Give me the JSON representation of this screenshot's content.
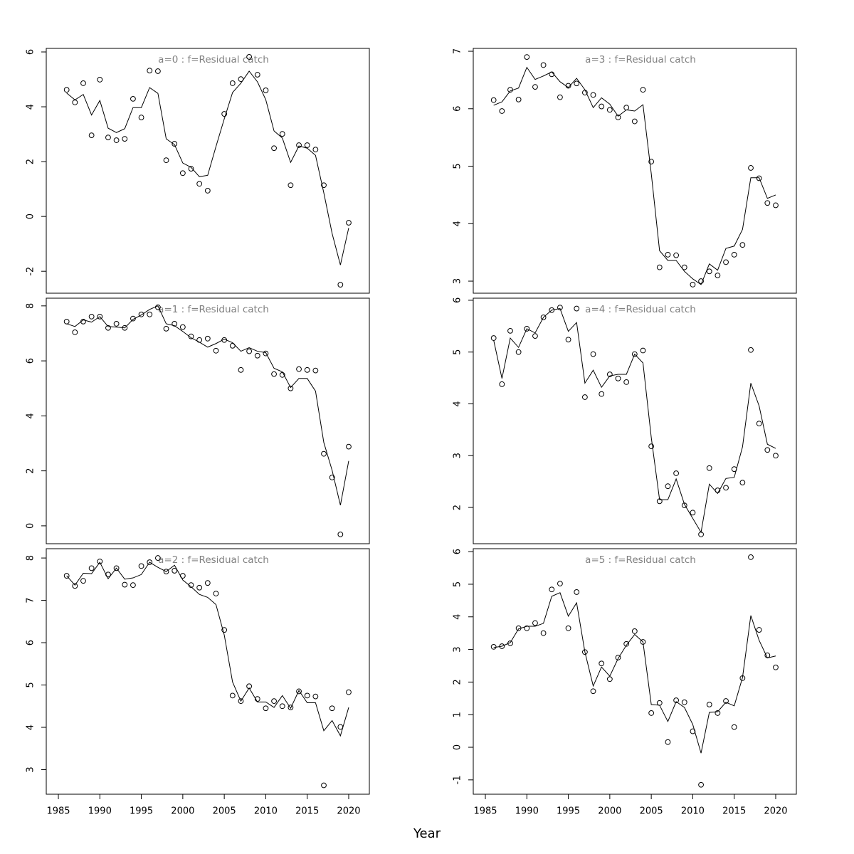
{
  "xlabel": "Year",
  "chart_data": [
    {
      "type": "line",
      "title": "a=0  :  f=Residual catch",
      "x": [
        1986,
        1987,
        1988,
        1989,
        1990,
        1991,
        1992,
        1993,
        1994,
        1995,
        1996,
        1997,
        1998,
        1999,
        2000,
        2001,
        2002,
        2003,
        2004,
        2005,
        2006,
        2007,
        2008,
        2009,
        2010,
        2011,
        2012,
        2013,
        2014,
        2015,
        2016,
        2017,
        2018,
        2019,
        2020
      ],
      "xlim": [
        1983.54,
        2022.49
      ],
      "ylim": [
        -2.8,
        6.13
      ],
      "yticks": [
        -2,
        0,
        2,
        4,
        6
      ],
      "series": [
        {
          "mode": "markers",
          "color": "#000000",
          "values": [
            4.62,
            4.16,
            4.86,
            2.96,
            4.99,
            2.88,
            2.78,
            2.83,
            4.29,
            3.61,
            5.32,
            5.3,
            2.05,
            2.65,
            1.58,
            1.74,
            1.19,
            0.94,
            null,
            3.74,
            4.86,
            5.01,
            5.82,
            5.17,
            4.6,
            2.49,
            3.01,
            1.14,
            2.6,
            2.6,
            2.44,
            1.14,
            null,
            -2.49,
            -0.23
          ]
        },
        {
          "mode": "lines",
          "color": "#000000",
          "values": [
            4.5,
            4.25,
            4.45,
            3.7,
            4.23,
            3.22,
            3.06,
            3.2,
            3.97,
            3.97,
            4.7,
            4.49,
            2.83,
            2.62,
            1.95,
            1.79,
            1.45,
            1.5,
            2.55,
            3.56,
            4.52,
            4.86,
            5.3,
            4.91,
            4.26,
            3.12,
            2.86,
            1.97,
            2.57,
            2.49,
            2.23,
            0.86,
            -0.62,
            -1.77,
            -0.42
          ]
        }
      ]
    },
    {
      "type": "line",
      "title": "a=1  :  f=Residual catch",
      "x": [
        1986,
        1987,
        1988,
        1989,
        1990,
        1991,
        1992,
        1993,
        1994,
        1995,
        1996,
        1997,
        1998,
        1999,
        2000,
        2001,
        2002,
        2003,
        2004,
        2005,
        2006,
        2007,
        2008,
        2009,
        2010,
        2011,
        2012,
        2013,
        2014,
        2015,
        2016,
        2017,
        2018,
        2019,
        2020
      ],
      "xlim": [
        1983.54,
        2022.49
      ],
      "ylim": [
        -0.65,
        8.28
      ],
      "yticks": [
        0,
        2,
        4,
        6,
        8
      ],
      "series": [
        {
          "mode": "markers",
          "color": "#000000",
          "values": [
            7.43,
            7.04,
            7.43,
            7.61,
            7.61,
            7.2,
            7.35,
            7.2,
            7.54,
            7.69,
            7.69,
            7.95,
            7.17,
            7.35,
            7.23,
            6.89,
            6.76,
            6.81,
            6.37,
            6.76,
            6.55,
            5.67,
            6.35,
            6.19,
            6.27,
            5.52,
            5.49,
            5.0,
            5.7,
            5.67,
            5.65,
            2.62,
            1.76,
            -0.31,
            2.88
          ]
        },
        {
          "mode": "lines",
          "color": "#000000",
          "values": [
            7.35,
            7.25,
            7.49,
            7.41,
            7.61,
            7.25,
            7.23,
            7.2,
            7.51,
            7.67,
            7.87,
            8.0,
            7.35,
            7.28,
            7.07,
            6.84,
            6.68,
            6.5,
            6.63,
            6.79,
            6.66,
            6.35,
            6.48,
            6.35,
            6.3,
            5.73,
            5.6,
            5.03,
            5.36,
            5.36,
            4.9,
            3.03,
            2.02,
            0.75,
            2.36
          ]
        }
      ]
    },
    {
      "type": "line",
      "title": "a=2  :  f=Residual catch",
      "x": [
        1986,
        1987,
        1988,
        1989,
        1990,
        1991,
        1992,
        1993,
        1994,
        1995,
        1996,
        1997,
        1998,
        1999,
        2000,
        2001,
        2002,
        2003,
        2004,
        2005,
        2006,
        2007,
        2008,
        2009,
        2010,
        2011,
        2012,
        2013,
        2014,
        2015,
        2016,
        2017,
        2018,
        2019,
        2020
      ],
      "xlim": [
        1983.54,
        2022.49
      ],
      "ylim": [
        2.42,
        8.22
      ],
      "yticks": [
        3,
        4,
        5,
        6,
        7,
        8
      ],
      "xticks": [
        1985,
        1990,
        1995,
        2000,
        2005,
        2010,
        2015,
        2020
      ],
      "series": [
        {
          "mode": "markers",
          "color": "#000000",
          "values": [
            7.58,
            7.34,
            7.46,
            7.76,
            7.92,
            7.61,
            7.76,
            7.37,
            7.36,
            7.81,
            7.9,
            8.0,
            7.68,
            7.7,
            7.58,
            7.36,
            7.3,
            7.41,
            7.16,
            6.3,
            4.75,
            4.62,
            4.97,
            4.67,
            4.45,
            4.62,
            4.5,
            4.47,
            4.85,
            4.75,
            4.73,
            2.63,
            4.45,
            4.01,
            4.83
          ]
        },
        {
          "mode": "lines",
          "color": "#000000",
          "values": [
            7.58,
            7.36,
            7.64,
            7.63,
            7.9,
            7.51,
            7.76,
            7.5,
            7.53,
            7.61,
            7.9,
            7.78,
            7.68,
            7.83,
            7.48,
            7.32,
            7.14,
            7.07,
            6.9,
            6.18,
            5.07,
            4.62,
            4.93,
            4.6,
            4.6,
            4.47,
            4.75,
            4.45,
            4.87,
            4.58,
            4.58,
            3.92,
            4.16,
            3.8,
            4.47
          ]
        }
      ]
    },
    {
      "type": "line",
      "title": "a=3  :  f=Residual catch",
      "x": [
        1986,
        1987,
        1988,
        1989,
        1990,
        1991,
        1992,
        1993,
        1994,
        1995,
        1996,
        1997,
        1998,
        1999,
        2000,
        2001,
        2002,
        2003,
        2004,
        2005,
        2006,
        2007,
        2008,
        2009,
        2010,
        2011,
        2012,
        2013,
        2014,
        2015,
        2016,
        2017,
        2018,
        2019,
        2020
      ],
      "xlim": [
        1983.54,
        2022.49
      ],
      "ylim": [
        2.79,
        7.05
      ],
      "yticks": [
        3,
        4,
        5,
        6,
        7
      ],
      "series": [
        {
          "mode": "markers",
          "color": "#000000",
          "values": [
            6.15,
            5.96,
            6.33,
            6.16,
            6.9,
            6.38,
            6.76,
            6.6,
            6.2,
            6.4,
            6.44,
            6.28,
            6.24,
            6.04,
            5.98,
            5.85,
            6.02,
            5.78,
            6.33,
            5.08,
            3.24,
            3.46,
            3.45,
            3.24,
            2.94,
            3.0,
            3.17,
            3.1,
            3.33,
            3.46,
            3.63,
            4.97,
            4.79,
            4.36,
            4.32
          ]
        },
        {
          "mode": "lines",
          "color": "#000000",
          "values": [
            6.06,
            6.12,
            6.31,
            6.36,
            6.72,
            6.51,
            6.57,
            6.64,
            6.47,
            6.37,
            6.53,
            6.33,
            6.02,
            6.19,
            6.08,
            5.87,
            5.98,
            5.96,
            6.07,
            4.87,
            3.53,
            3.36,
            3.36,
            3.17,
            3.04,
            2.94,
            3.3,
            3.19,
            3.57,
            3.61,
            3.9,
            4.8,
            4.8,
            4.44,
            4.5
          ]
        }
      ]
    },
    {
      "type": "line",
      "title": "a=4  :  f=Residual catch",
      "x": [
        1986,
        1987,
        1988,
        1989,
        1990,
        1991,
        1992,
        1993,
        1994,
        1995,
        1996,
        1997,
        1998,
        1999,
        2000,
        2001,
        2002,
        2003,
        2004,
        2005,
        2006,
        2007,
        2008,
        2009,
        2010,
        2011,
        2012,
        2013,
        2014,
        2015,
        2016,
        2017,
        2018,
        2019,
        2020
      ],
      "xlim": [
        1983.54,
        2022.49
      ],
      "ylim": [
        1.3,
        6.04
      ],
      "yticks": [
        2,
        3,
        4,
        5,
        6
      ],
      "series": [
        {
          "mode": "markers",
          "color": "#000000",
          "values": [
            5.27,
            4.38,
            5.41,
            5.0,
            5.45,
            5.31,
            5.67,
            5.81,
            5.86,
            5.24,
            5.84,
            4.13,
            4.96,
            4.19,
            4.57,
            4.49,
            4.42,
            4.96,
            5.03,
            3.18,
            2.12,
            2.41,
            2.66,
            2.04,
            1.9,
            1.48,
            2.76,
            2.33,
            2.38,
            2.74,
            2.48,
            5.04,
            3.62,
            3.11,
            3.0
          ]
        },
        {
          "mode": "lines",
          "color": "#000000",
          "values": [
            5.23,
            4.49,
            5.27,
            5.09,
            5.45,
            5.37,
            5.67,
            5.81,
            5.84,
            5.4,
            5.57,
            4.4,
            4.65,
            4.32,
            4.54,
            4.57,
            4.57,
            4.96,
            4.79,
            3.35,
            2.15,
            2.15,
            2.55,
            2.06,
            1.79,
            1.52,
            2.45,
            2.27,
            2.56,
            2.58,
            3.17,
            4.4,
            3.96,
            3.22,
            3.14
          ]
        }
      ]
    },
    {
      "type": "line",
      "title": "a=5  :  f=Residual catch",
      "x": [
        1986,
        1987,
        1988,
        1989,
        1990,
        1991,
        1992,
        1993,
        1994,
        1995,
        1996,
        1997,
        1998,
        1999,
        2000,
        2001,
        2002,
        2003,
        2004,
        2005,
        2006,
        2007,
        2008,
        2009,
        2010,
        2011,
        2012,
        2013,
        2014,
        2015,
        2016,
        2017,
        2018,
        2019,
        2020
      ],
      "xlim": [
        1983.54,
        2022.49
      ],
      "ylim": [
        -1.44,
        6.09
      ],
      "yticks": [
        -1,
        0,
        1,
        2,
        3,
        4,
        5,
        6
      ],
      "xticks": [
        1985,
        1990,
        1995,
        2000,
        2005,
        2010,
        2015,
        2020
      ],
      "series": [
        {
          "mode": "markers",
          "color": "#000000",
          "values": [
            3.08,
            3.1,
            3.19,
            3.65,
            3.65,
            3.81,
            3.5,
            4.84,
            5.02,
            3.65,
            4.76,
            2.92,
            1.72,
            2.57,
            2.09,
            2.75,
            3.17,
            3.56,
            3.23,
            1.05,
            1.36,
            0.16,
            1.44,
            1.38,
            0.49,
            -1.15,
            1.31,
            1.05,
            1.42,
            0.62,
            2.12,
            5.83,
            3.6,
            2.82,
            2.45
          ]
        },
        {
          "mode": "lines",
          "color": "#000000",
          "values": [
            3.06,
            3.1,
            3.21,
            3.63,
            3.71,
            3.71,
            3.8,
            4.63,
            4.74,
            4.02,
            4.43,
            2.92,
            1.88,
            2.46,
            2.18,
            2.72,
            3.13,
            3.46,
            3.23,
            1.31,
            1.29,
            0.79,
            1.4,
            1.22,
            0.7,
            -0.18,
            1.07,
            1.09,
            1.38,
            1.27,
            2.14,
            4.04,
            3.28,
            2.74,
            2.8
          ]
        }
      ]
    }
  ]
}
